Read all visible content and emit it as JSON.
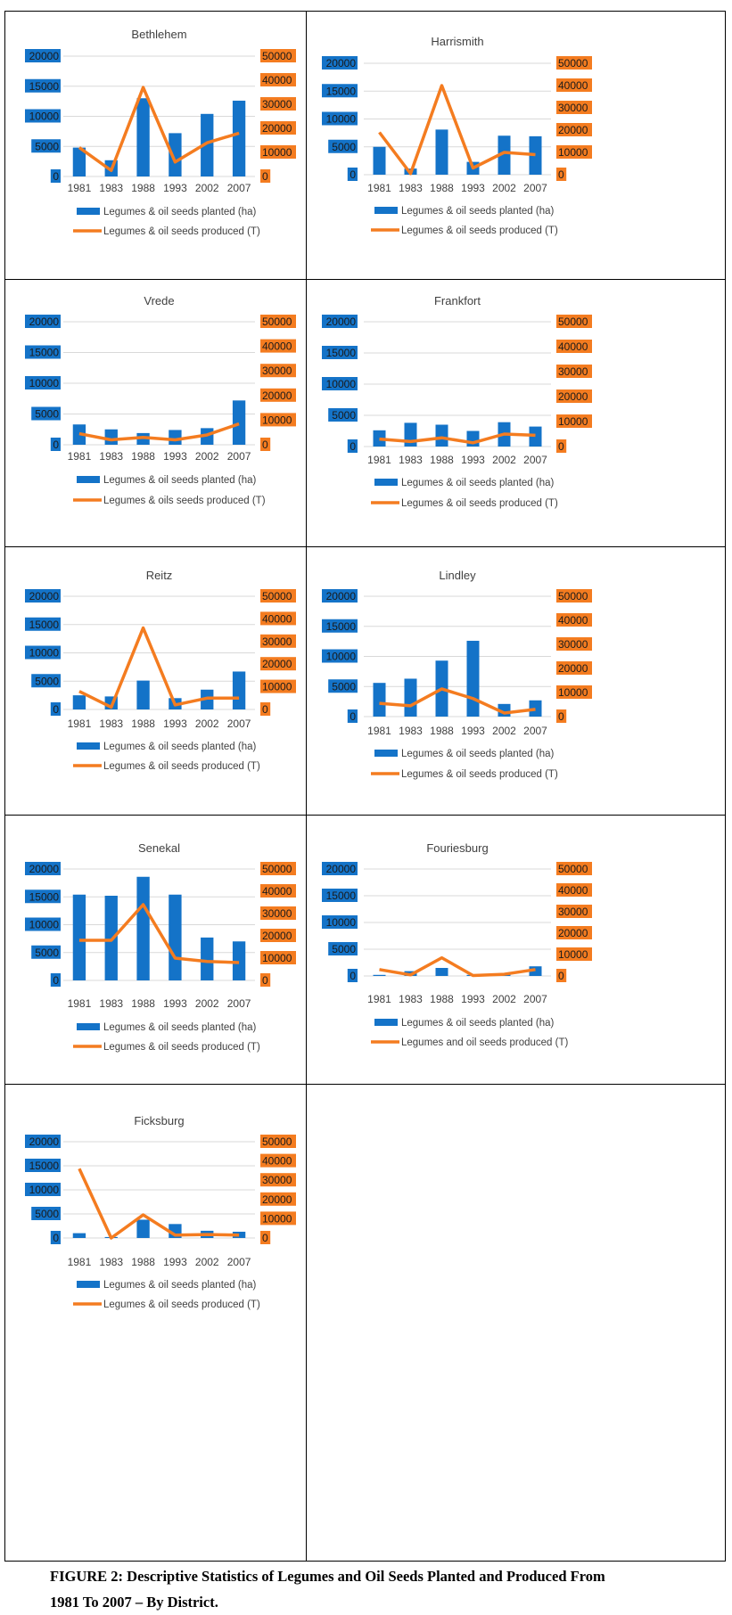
{
  "colors": {
    "planted": "#1473c8",
    "produced": "#f47c20",
    "gridline": "#d9d9d9",
    "axis_text": "#404040"
  },
  "caption": {
    "line1": "FIGURE 2: Descriptive Statistics of Legumes and Oil Seeds Planted and Produced From",
    "line2": "1981 To 2007 – By District."
  },
  "chart_data": [
    {
      "type": "bar",
      "title": "Bethlehem",
      "categories": [
        "1981",
        "1983",
        "1988",
        "1993",
        "2002",
        "2007"
      ],
      "y_ticks": [
        "20000",
        "15000",
        "10000",
        "5000",
        "0"
      ],
      "y2_ticks": [
        "50000",
        "40000",
        "30000",
        "20000",
        "10000",
        "0"
      ],
      "ylim": [
        0,
        20000
      ],
      "y2lim": [
        0,
        50000
      ],
      "series": [
        {
          "name": "Legumes & oil seeds planted (ha)",
          "type": "bar",
          "axis": "left",
          "values": [
            4800,
            2700,
            13000,
            7200,
            10400,
            12600
          ]
        },
        {
          "name": "Legumes & oil seeds produced (T)",
          "type": "line",
          "axis": "right",
          "values": [
            12000,
            2500,
            37000,
            6000,
            14000,
            18000
          ]
        }
      ]
    },
    {
      "type": "bar",
      "title": "Harrismith",
      "categories": [
        "1981",
        "1983",
        "1988",
        "1993",
        "2002",
        "2007"
      ],
      "y_ticks": [
        "20000",
        "15000",
        "10000",
        "5000",
        "0"
      ],
      "y2_ticks": [
        "50000",
        "40000",
        "30000",
        "20000",
        "10000",
        "0"
      ],
      "ylim": [
        0,
        20000
      ],
      "y2lim": [
        0,
        50000
      ],
      "series": [
        {
          "name": "Legumes & oil seeds planted (ha)",
          "type": "bar",
          "axis": "left",
          "values": [
            5000,
            1100,
            8100,
            2300,
            7000,
            6900
          ]
        },
        {
          "name": "Legumes & oil seeds produced (T)",
          "type": "line",
          "axis": "right",
          "values": [
            19000,
            500,
            40000,
            3000,
            10000,
            9000
          ]
        }
      ]
    },
    {
      "type": "bar",
      "title": "Vrede",
      "categories": [
        "1981",
        "1983",
        "1988",
        "1993",
        "2002",
        "2007"
      ],
      "y_ticks": [
        "20000",
        "15000",
        "10000",
        "5000",
        "0"
      ],
      "y2_ticks": [
        "50000",
        "40000",
        "30000",
        "20000",
        "10000",
        "0"
      ],
      "ylim": [
        0,
        20000
      ],
      "y2lim": [
        0,
        50000
      ],
      "series": [
        {
          "name": "Legumes & oil seeds planted (ha)",
          "type": "bar",
          "axis": "left",
          "values": [
            3300,
            2500,
            1900,
            2400,
            2700,
            7200
          ]
        },
        {
          "name": "Legumes & oils seeds produced (T)",
          "type": "line",
          "axis": "right",
          "values": [
            4500,
            2000,
            3000,
            2000,
            4000,
            8500
          ]
        }
      ]
    },
    {
      "type": "bar",
      "title": "Frankfort",
      "categories": [
        "1981",
        "1983",
        "1988",
        "1993",
        "2002",
        "2007"
      ],
      "y_ticks": [
        "20000",
        "15000",
        "10000",
        "5000",
        "0"
      ],
      "y2_ticks": [
        "50000",
        "40000",
        "30000",
        "20000",
        "10000",
        "0"
      ],
      "ylim": [
        0,
        20000
      ],
      "y2lim": [
        0,
        50000
      ],
      "series": [
        {
          "name": "Legumes & oil seeds planted (ha)",
          "type": "bar",
          "axis": "left",
          "values": [
            2600,
            3800,
            3500,
            2500,
            3900,
            3200
          ]
        },
        {
          "name": "Legumes & oil seeds produced (T)",
          "type": "line",
          "axis": "right",
          "values": [
            3000,
            2000,
            3500,
            1500,
            5000,
            4500
          ]
        }
      ]
    },
    {
      "type": "bar",
      "title": "Reitz",
      "categories": [
        "1981",
        "1983",
        "1988",
        "1993",
        "2002",
        "2007"
      ],
      "y_ticks": [
        "20000",
        "15000",
        "10000",
        "5000",
        "0"
      ],
      "y2_ticks": [
        "50000",
        "40000",
        "30000",
        "20000",
        "10000",
        "0"
      ],
      "ylim": [
        0,
        20000
      ],
      "y2lim": [
        0,
        50000
      ],
      "series": [
        {
          "name": "Legumes & oil seeds planted (ha)",
          "type": "bar",
          "axis": "left",
          "values": [
            2500,
            2300,
            5100,
            2000,
            3500,
            6700
          ]
        },
        {
          "name": "Legumes & oil seeds produced (T)",
          "type": "line",
          "axis": "right",
          "values": [
            8000,
            1000,
            36000,
            2000,
            5000,
            5000
          ]
        }
      ]
    },
    {
      "type": "bar",
      "title": "Lindley",
      "categories": [
        "1981",
        "1983",
        "1988",
        "1993",
        "2002",
        "2007"
      ],
      "y_ticks": [
        "20000",
        "15000",
        "10000",
        "5000",
        "0"
      ],
      "y2_ticks": [
        "50000",
        "40000",
        "30000",
        "20000",
        "10000",
        "0"
      ],
      "ylim": [
        0,
        20000
      ],
      "y2lim": [
        0,
        50000
      ],
      "series": [
        {
          "name": "Legumes & oil seeds planted (ha)",
          "type": "bar",
          "axis": "left",
          "values": [
            5600,
            6300,
            9300,
            12600,
            2100,
            2700
          ]
        },
        {
          "name": "Legumes & oil seeds produced (T)",
          "type": "line",
          "axis": "right",
          "values": [
            5500,
            4500,
            11500,
            7500,
            1500,
            3000
          ]
        }
      ]
    },
    {
      "type": "bar",
      "title": "Senekal",
      "categories": [
        "1981",
        "1983",
        "1988",
        "1993",
        "2002",
        "2007"
      ],
      "y_ticks": [
        "20000",
        "15000",
        "10000",
        "5000",
        "0"
      ],
      "y2_ticks": [
        "50000",
        "40000",
        "30000",
        "20000",
        "10000",
        "0"
      ],
      "ylim": [
        0,
        20000
      ],
      "y2lim": [
        0,
        50000
      ],
      "series": [
        {
          "name": "Legumes & oil seeds planted (ha)",
          "type": "bar",
          "axis": "left",
          "values": [
            15400,
            15200,
            18600,
            15400,
            7700,
            7000
          ]
        },
        {
          "name": "Legumes & oil seeds produced (T)",
          "type": "line",
          "axis": "right",
          "values": [
            18000,
            18000,
            34000,
            10000,
            8500,
            8000
          ]
        }
      ]
    },
    {
      "type": "bar",
      "title": "Fouriesburg",
      "categories": [
        "1981",
        "1983",
        "1988",
        "1993",
        "2002",
        "2007"
      ],
      "y_ticks": [
        "20000",
        "15000",
        "10000",
        "5000",
        "0"
      ],
      "y2_ticks": [
        "50000",
        "40000",
        "30000",
        "20000",
        "10000",
        "0"
      ],
      "ylim": [
        0,
        20000
      ],
      "y2lim": [
        0,
        50000
      ],
      "series": [
        {
          "name": "Legumes & oil seeds planted (ha)",
          "type": "bar",
          "axis": "left",
          "values": [
            200,
            900,
            1500,
            200,
            500,
            1800
          ]
        },
        {
          "name": "Legumes and oil seeds produced (T)",
          "type": "line",
          "axis": "right",
          "values": [
            3000,
            500,
            8500,
            200,
            800,
            3000
          ]
        }
      ]
    },
    {
      "type": "bar",
      "title": "Ficksburg",
      "categories": [
        "1981",
        "1983",
        "1988",
        "1993",
        "2002",
        "2007"
      ],
      "y_ticks": [
        "20000",
        "15000",
        "10000",
        "5000",
        "0"
      ],
      "y2_ticks": [
        "50000",
        "40000",
        "30000",
        "20000",
        "10000",
        "0"
      ],
      "ylim": [
        0,
        20000
      ],
      "y2lim": [
        0,
        50000
      ],
      "series": [
        {
          "name": "Legumes & oil seeds planted (ha)",
          "type": "bar",
          "axis": "left",
          "values": [
            1000,
            200,
            3800,
            2900,
            1500,
            1300
          ]
        },
        {
          "name": "Legumes & oil seeds produced (T)",
          "type": "line",
          "axis": "right",
          "values": [
            36000,
            0,
            12000,
            1500,
            1800,
            1500
          ]
        }
      ]
    }
  ]
}
